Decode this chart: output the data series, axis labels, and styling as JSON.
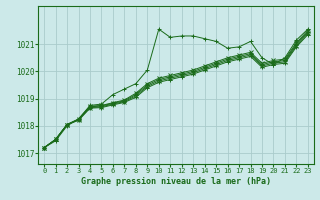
{
  "title": "Graphe pression niveau de la mer (hPa)",
  "bg_color": "#cce9e9",
  "grid_color": "#aacccc",
  "line_color": "#1a6b1a",
  "xlim": [
    -0.5,
    23.5
  ],
  "ylim": [
    1016.6,
    1022.4
  ],
  "yticks": [
    1017,
    1018,
    1019,
    1020,
    1021
  ],
  "xticks": [
    0,
    1,
    2,
    3,
    4,
    5,
    6,
    7,
    8,
    9,
    10,
    11,
    12,
    13,
    14,
    15,
    16,
    17,
    18,
    19,
    20,
    21,
    22,
    23
  ],
  "series": [
    {
      "x": [
        0,
        1,
        2,
        3,
        4,
        5,
        6,
        7,
        8,
        9,
        10,
        11,
        12,
        13,
        14,
        15,
        16,
        17,
        18,
        19,
        20,
        21,
        22,
        23
      ],
      "y": [
        1017.2,
        1017.45,
        1018.0,
        1018.25,
        1018.75,
        1018.8,
        1019.15,
        1019.35,
        1019.55,
        1020.05,
        1021.55,
        1021.25,
        1021.3,
        1021.3,
        1021.2,
        1021.1,
        1020.85,
        1020.9,
        1021.1,
        1020.5,
        1020.25,
        1020.5,
        1021.15,
        1021.55
      ],
      "marker": "+"
    },
    {
      "x": [
        0,
        1,
        2,
        3,
        4,
        5,
        6,
        7,
        8,
        9,
        10,
        11,
        12,
        13,
        14,
        15,
        16,
        17,
        18,
        19,
        20,
        21,
        22,
        23
      ],
      "y": [
        1017.2,
        1017.5,
        1018.05,
        1018.25,
        1018.72,
        1018.75,
        1018.85,
        1018.95,
        1019.2,
        1019.55,
        1019.75,
        1019.85,
        1019.95,
        1020.05,
        1020.2,
        1020.35,
        1020.5,
        1020.6,
        1020.7,
        1020.3,
        1020.4,
        1020.45,
        1021.05,
        1021.5
      ],
      "marker": "x"
    },
    {
      "x": [
        0,
        1,
        2,
        3,
        4,
        5,
        6,
        7,
        8,
        9,
        10,
        11,
        12,
        13,
        14,
        15,
        16,
        17,
        18,
        19,
        20,
        21,
        22,
        23
      ],
      "y": [
        1017.2,
        1017.5,
        1018.05,
        1018.25,
        1018.7,
        1018.73,
        1018.83,
        1018.92,
        1019.15,
        1019.5,
        1019.7,
        1019.8,
        1019.9,
        1020.0,
        1020.15,
        1020.3,
        1020.45,
        1020.55,
        1020.65,
        1020.25,
        1020.35,
        1020.4,
        1021.0,
        1021.45
      ],
      "marker": "+"
    },
    {
      "x": [
        0,
        1,
        2,
        3,
        4,
        5,
        6,
        7,
        8,
        9,
        10,
        11,
        12,
        13,
        14,
        15,
        16,
        17,
        18,
        19,
        20,
        21,
        22,
        23
      ],
      "y": [
        1017.2,
        1017.5,
        1018.05,
        1018.22,
        1018.67,
        1018.7,
        1018.8,
        1018.89,
        1019.1,
        1019.45,
        1019.65,
        1019.75,
        1019.85,
        1019.95,
        1020.1,
        1020.25,
        1020.4,
        1020.5,
        1020.6,
        1020.2,
        1020.3,
        1020.35,
        1020.95,
        1021.4
      ],
      "marker": "x"
    },
    {
      "x": [
        0,
        1,
        2,
        3,
        4,
        5,
        6,
        7,
        8,
        9,
        10,
        11,
        12,
        13,
        14,
        15,
        16,
        17,
        18,
        19,
        20,
        21,
        22,
        23
      ],
      "y": [
        1017.2,
        1017.5,
        1018.05,
        1018.2,
        1018.65,
        1018.67,
        1018.77,
        1018.86,
        1019.05,
        1019.4,
        1019.6,
        1019.7,
        1019.8,
        1019.9,
        1020.05,
        1020.2,
        1020.35,
        1020.45,
        1020.55,
        1020.15,
        1020.25,
        1020.3,
        1020.9,
        1021.35
      ],
      "marker": "+"
    }
  ]
}
